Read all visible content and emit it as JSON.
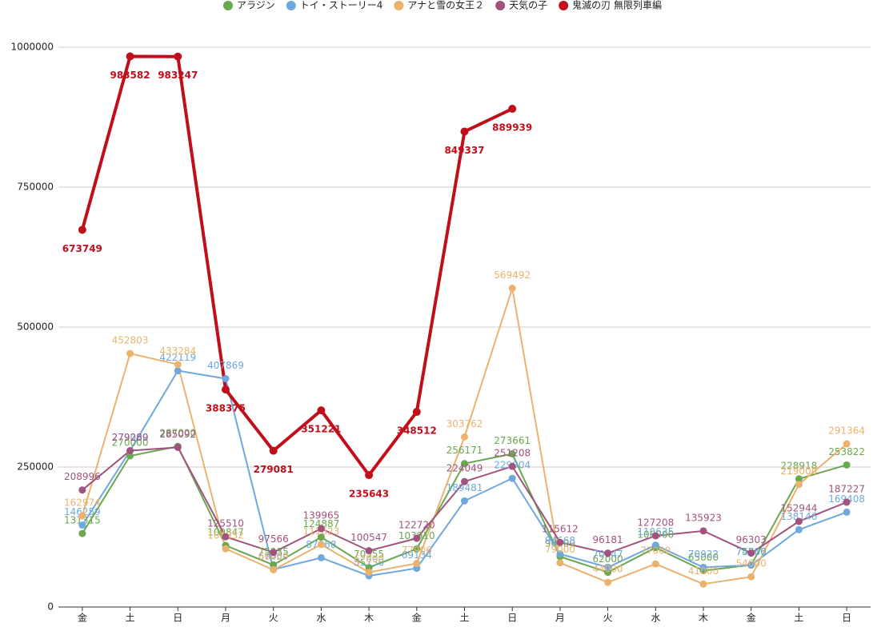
{
  "chart_data": {
    "type": "line",
    "categories": [
      "金",
      "土",
      "日",
      "月",
      "火",
      "水",
      "木",
      "金",
      "土",
      "日",
      "月",
      "火",
      "水",
      "木",
      "金",
      "土",
      "日"
    ],
    "series": [
      {
        "name": "アラジン",
        "color": "#6aa84f",
        "values": [
          131315,
          270000,
          287000,
          109847,
          75235,
          124887,
          70555,
          103910,
          256171,
          273661,
          90000,
          62000,
          106000,
          65000,
          75000,
          228918,
          253822
        ]
      },
      {
        "name": "トイ・ストーリー4",
        "color": "#6fa8dc",
        "values": [
          146259,
          279000,
          422119,
          407869,
          67000,
          87968,
          55730,
          69134,
          189481,
          229904,
          94668,
          70947,
          110625,
          70922,
          74786,
          138146,
          169408
        ]
      },
      {
        "name": "アナと雪の女王２",
        "color": "#ebb26e",
        "values": [
          162974,
          452803,
          433284,
          104032,
          66459,
          111623,
          62000,
          77906,
          303762,
          569492,
          79000,
          44000,
          77000,
          41000,
          54000,
          219000,
          291364
        ]
      },
      {
        "name": "天気の子",
        "color": "#a2527e",
        "values": [
          208996,
          279289,
          285092,
          125510,
          97566,
          139965,
          100547,
          122720,
          224049,
          251208,
          115612,
          96181,
          127208,
          135923,
          96303,
          152944,
          187227
        ]
      },
      {
        "name": "鬼滅の刃 無限列車編",
        "color": "#c00f1b",
        "values": [
          673749,
          983582,
          983247,
          388375,
          279081,
          351221,
          235643,
          348512,
          849337,
          889939,
          null,
          null,
          null,
          null,
          null,
          null,
          null
        ]
      }
    ],
    "ylim": [
      0,
      1000000
    ],
    "yticks": [
      0,
      250000,
      500000,
      750000,
      1000000
    ],
    "grid": true,
    "legend": "top"
  }
}
